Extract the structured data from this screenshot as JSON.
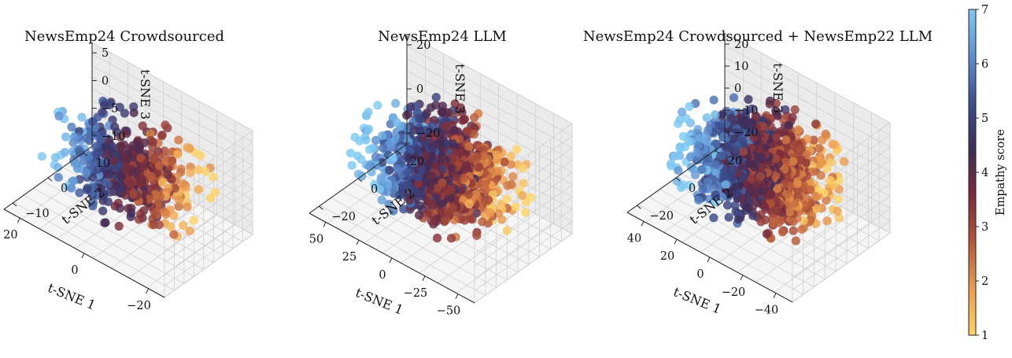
{
  "figure": {
    "colormap": "empathy",
    "colormap_stops": [
      "#fdd468",
      "#ec9c4e",
      "#b5563a",
      "#7a2c3a",
      "#3e2b58",
      "#3b4f8f",
      "#5f8fd0",
      "#7ec9f2"
    ],
    "colorbar": {
      "label": "Empathy score",
      "min": 1,
      "max": 7,
      "ticks": [
        "1",
        "2",
        "3",
        "4",
        "5",
        "6",
        "7"
      ]
    }
  },
  "chart_data": [
    {
      "type": "scatter",
      "title": "NewsEmp24 Crowdsourced",
      "xlabel": "t-SNE 1",
      "ylabel": "t-SNE 2",
      "zlabel": "t-SNE 3",
      "xlim": [
        -25,
        25
      ],
      "ylim": [
        -15,
        17
      ],
      "zlim": [
        -11,
        8
      ],
      "xticks": [
        "−20",
        "0",
        "20"
      ],
      "yticks": [
        "−10",
        "0",
        "10"
      ],
      "zticks": [
        "−10",
        "−5",
        "0",
        "5"
      ],
      "points": 500,
      "score_range": [
        1,
        7
      ]
    },
    {
      "type": "scatter",
      "title": "NewsEmp24 LLM",
      "xlabel": "t-SNE 1",
      "ylabel": "t-SNE 2",
      "zlabel": "t-SNE 3",
      "xlim": [
        -55,
        55
      ],
      "ylim": [
        -30,
        30
      ],
      "zlim": [
        -30,
        28
      ],
      "xticks": [
        "−50",
        "−25",
        "0",
        "25",
        "50"
      ],
      "yticks": [
        "−20",
        "0",
        "20"
      ],
      "zticks": [
        "−20",
        "0",
        "20"
      ],
      "points": 1000,
      "score_range": [
        1,
        7
      ]
    },
    {
      "type": "scatter",
      "title": "NewsEmp24 Crowdsourced + NewsEmp22 LLM",
      "xlabel": "t-SNE 1",
      "ylabel": "t-SNE 2",
      "zlabel": "t-SNE 3",
      "xlim": [
        -45,
        45
      ],
      "ylim": [
        -30,
        30
      ],
      "zlim": [
        -28,
        25
      ],
      "xticks": [
        "−40",
        "−20",
        "0",
        "20",
        "40"
      ],
      "yticks": [
        "−20",
        "0",
        "20"
      ],
      "zticks": [
        "−20",
        "−10",
        "0",
        "10",
        "20"
      ],
      "points": 1400,
      "score_range": [
        1,
        7
      ]
    }
  ]
}
